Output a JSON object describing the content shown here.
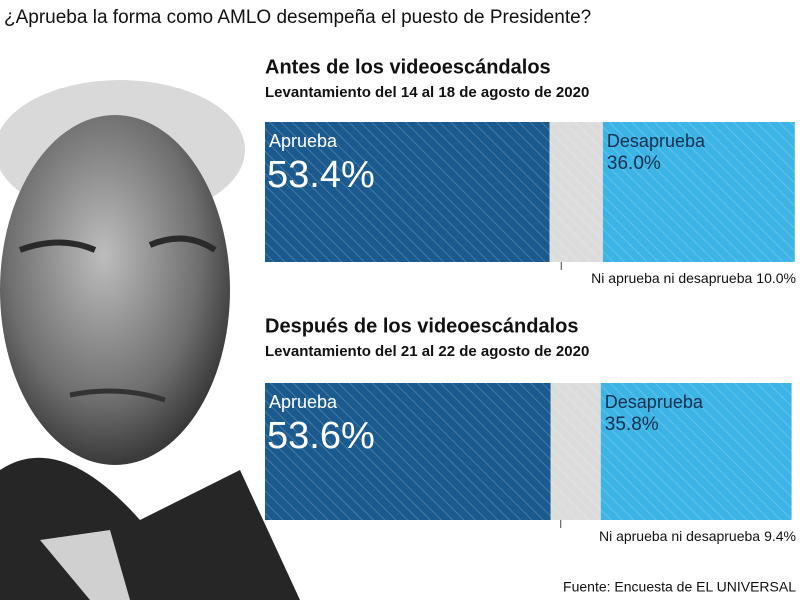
{
  "title": "¿Aprueba la forma como AMLO desempeña el puesto de Presidente?",
  "source": "Fuente: Encuesta de EL UNIVERSAL",
  "chart_data": [
    {
      "type": "stacked-bar",
      "title": "Antes de los videoescándalos",
      "subtitle": "Levantamiento del 14 al 18 de agosto de 2020",
      "xlim": [
        0,
        100
      ],
      "series": [
        {
          "name": "Aprueba",
          "color": "#1b5a8e",
          "values": [
            53.4
          ],
          "value_labels": [
            "53.4%"
          ]
        },
        {
          "name": "Ni aprueba ni desaprueba",
          "color": "#dcdcdc",
          "values": [
            10.0
          ],
          "value_labels": [
            "10.0%"
          ]
        },
        {
          "name": "Desaprueba",
          "color": "#3db4e6",
          "values": [
            36.0
          ],
          "value_labels": [
            "36.0%"
          ]
        }
      ]
    },
    {
      "type": "stacked-bar",
      "title": "Después de los videoescándalos",
      "subtitle": "Levantamiento del 21 al 22 de agosto de 2020",
      "xlim": [
        0,
        100
      ],
      "series": [
        {
          "name": "Aprueba",
          "color": "#1b5a8e",
          "values": [
            53.6
          ],
          "value_labels": [
            "53.6%"
          ]
        },
        {
          "name": "Ni aprueba ni desaprueba",
          "color": "#dcdcdc",
          "values": [
            9.4
          ],
          "value_labels": [
            "9.4%"
          ]
        },
        {
          "name": "Desaprueba",
          "color": "#3db4e6",
          "values": [
            35.8
          ],
          "value_labels": [
            "35.8%"
          ]
        }
      ]
    }
  ]
}
